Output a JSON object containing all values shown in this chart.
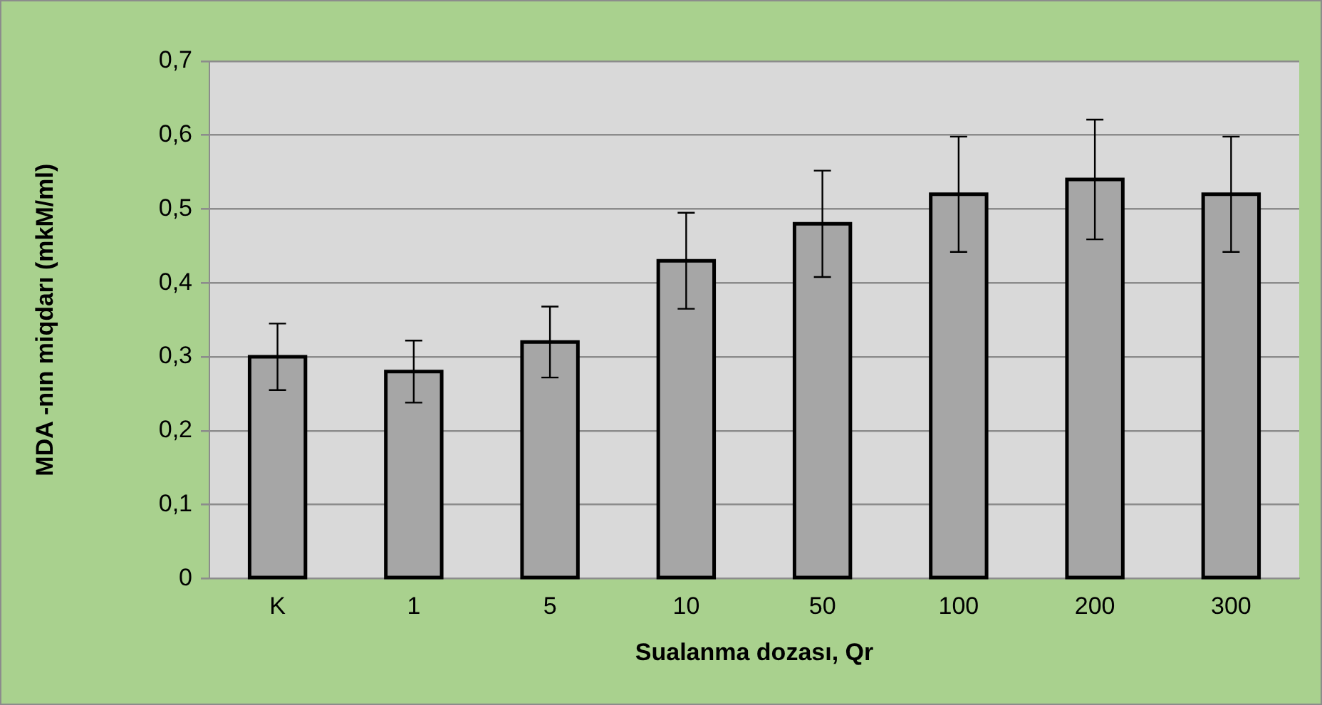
{
  "chart_data": {
    "type": "bar",
    "xlabel": "Sualanma dozası, Qr",
    "ylabel": "MDA -nın miqdarı (mkM/ml)",
    "categories": [
      "K",
      "1",
      "5",
      "10",
      "50",
      "100",
      "200",
      "300"
    ],
    "values": [
      0.3,
      0.28,
      0.32,
      0.43,
      0.48,
      0.52,
      0.54,
      0.52
    ],
    "errors": [
      0.045,
      0.042,
      0.048,
      0.065,
      0.072,
      0.078,
      0.081,
      0.078
    ],
    "color": "#a6a6a6",
    "ylim": [
      0,
      0.7
    ],
    "yticks": [
      0,
      {
        "value": 0.1,
        "label": "0,1"
      },
      {
        "value": 0.2,
        "label": "0,2"
      },
      {
        "value": 0.3,
        "label": "0,3"
      },
      {
        "value": 0.4,
        "label": "0,4"
      },
      {
        "value": 0.5,
        "label": "0,5"
      },
      {
        "value": 0.6,
        "label": "0,6"
      },
      {
        "value": 0.7,
        "label": "0,7"
      }
    ],
    "grid": "y"
  }
}
